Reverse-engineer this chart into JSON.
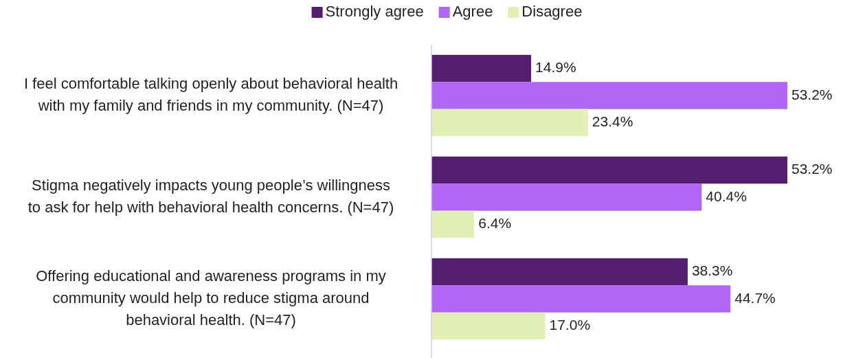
{
  "chart_data": {
    "type": "bar",
    "orientation": "horizontal",
    "categories": [
      "I feel comfortable talking openly about behavioral health with my family and friends in my community. (N=47)",
      "Stigma negatively impacts young people’s willingness to ask for help with behavioral health concerns. (N=47)",
      "Offering educational and awareness programs in my community would help to reduce stigma around behavioral health. (N=47)"
    ],
    "series": [
      {
        "name": "Strongly agree",
        "color": "#541d6e",
        "values": [
          14.9,
          53.2,
          38.3
        ],
        "value_labels": [
          "14.9%",
          "53.2%",
          "38.3%"
        ]
      },
      {
        "name": "Agree",
        "color": "#b266f5",
        "values": [
          53.2,
          40.4,
          44.7
        ],
        "value_labels": [
          "53.2%",
          "40.4%",
          "44.7%"
        ]
      },
      {
        "name": "Disagree",
        "color": "#e3f0b5",
        "values": [
          23.4,
          6.4,
          17.0
        ],
        "value_labels": [
          "23.4%",
          "6.4%",
          "17.0%"
        ]
      }
    ],
    "legend": "top"
  }
}
